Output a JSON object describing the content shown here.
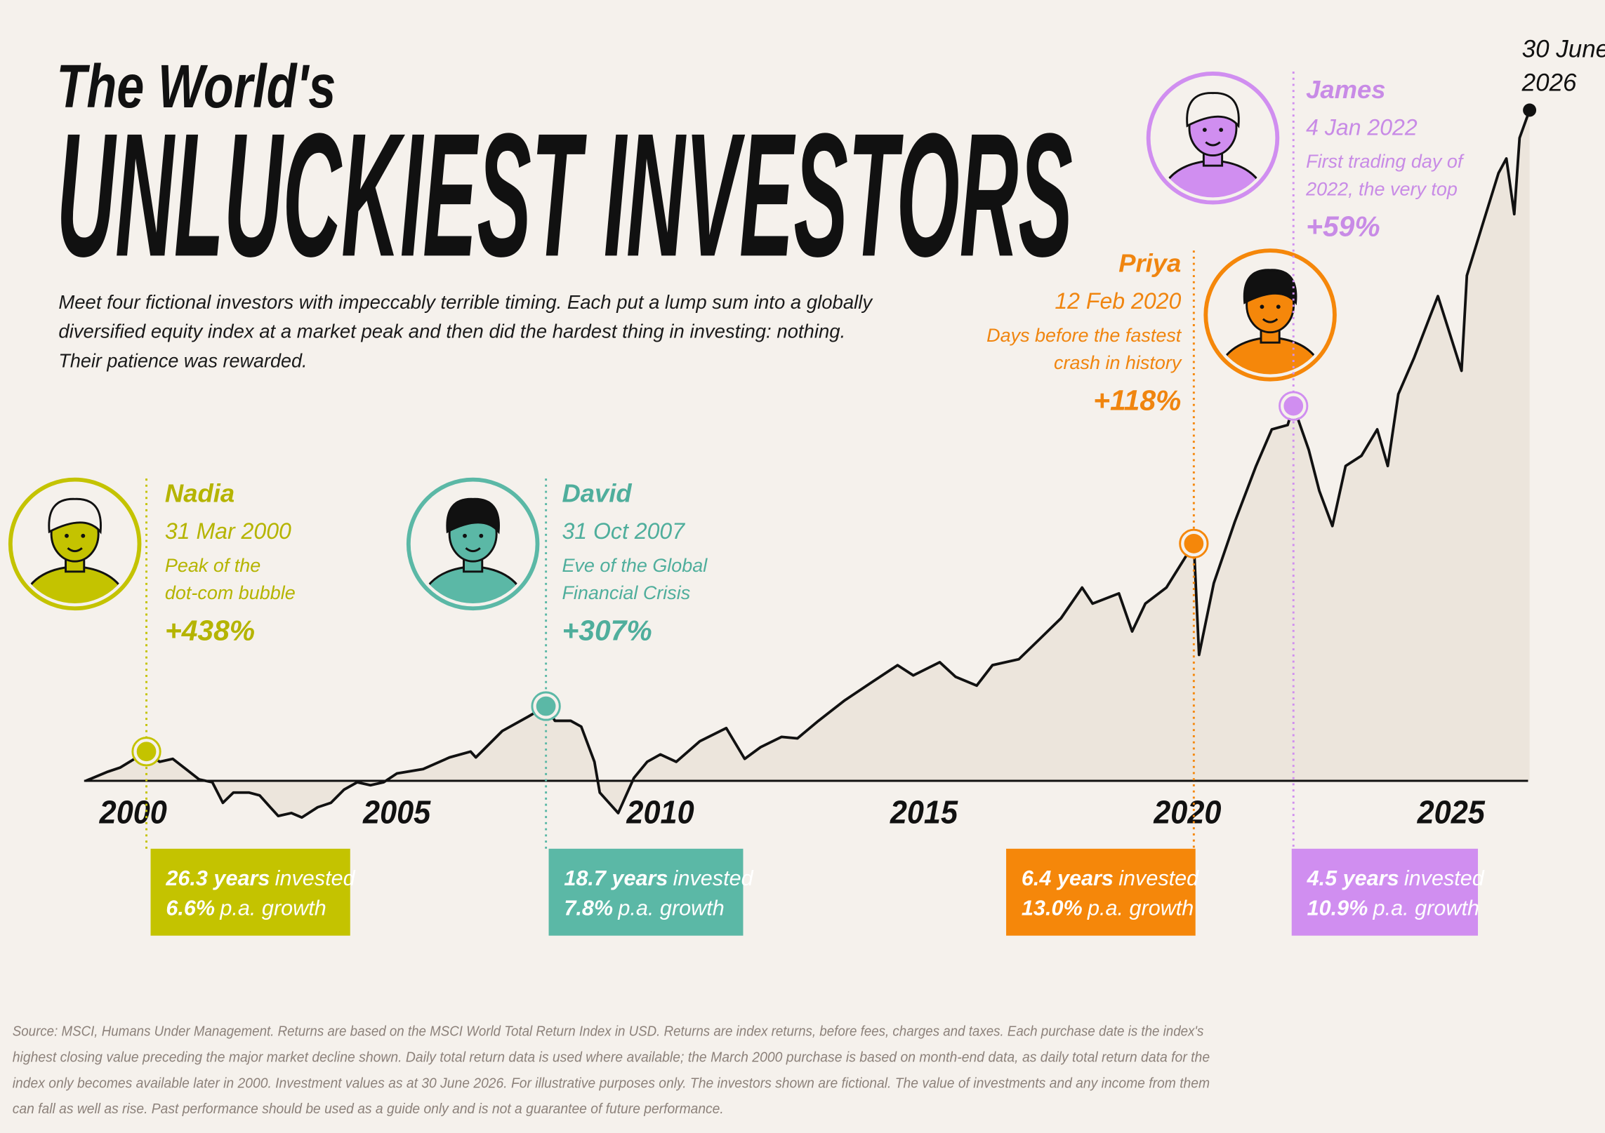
{
  "chart_data": {
    "type": "line",
    "title": "The World's",
    "subtitle": "UNLUCKIEST INVESTORS",
    "intro": [
      "Meet four fictional investors with impeccably terrible timing. Each put a lump sum into a globally",
      "diversified equity index at a market peak and then did the hardest thing in investing: nothing.",
      "Their patience was rewarded."
    ],
    "color": "#111111",
    "area_color": "#ece5dc",
    "x": [
      1999.1,
      1999.5,
      1999.75,
      2000.25,
      2000.5,
      2000.75,
      2001.0,
      2001.25,
      2001.5,
      2001.7,
      2001.9,
      2002.2,
      2002.4,
      2002.6,
      2002.75,
      2003.0,
      2003.2,
      2003.5,
      2003.75,
      2004.0,
      2004.25,
      2004.5,
      2004.75,
      2005.0,
      2005.5,
      2006.0,
      2006.4,
      2006.5,
      2007.0,
      2007.5,
      2007.83,
      2008.0,
      2008.3,
      2008.5,
      2008.75,
      2008.85,
      2009.2,
      2009.5,
      2009.75,
      2010.0,
      2010.3,
      2010.75,
      2011.25,
      2011.6,
      2011.9,
      2012.3,
      2012.6,
      2013.0,
      2013.5,
      2014.0,
      2014.5,
      2014.8,
      2015.3,
      2015.6,
      2016.0,
      2016.3,
      2016.8,
      2017.2,
      2017.6,
      2018.0,
      2018.2,
      2018.7,
      2018.95,
      2019.2,
      2019.6,
      2020.12,
      2020.22,
      2020.5,
      2020.9,
      2021.3,
      2021.6,
      2021.9,
      2022.01,
      2022.3,
      2022.5,
      2022.75,
      2023.0,
      2023.3,
      2023.6,
      2023.8,
      2024.0,
      2024.3,
      2024.6,
      2024.75,
      2025.2,
      2025.3,
      2025.6,
      2025.9,
      2026.05,
      2026.2,
      2026.3,
      2026.49
    ],
    "values": [
      80,
      86,
      89,
      100,
      93,
      95,
      88,
      81,
      79,
      65,
      72,
      72,
      70,
      62,
      56,
      58,
      55,
      62,
      65,
      74,
      79,
      77,
      79,
      85,
      88,
      96,
      100,
      96,
      114,
      124,
      131,
      121,
      121,
      117,
      93,
      72,
      58,
      82,
      93,
      98,
      93,
      107,
      116,
      95,
      103,
      110,
      109,
      121,
      135,
      147,
      159,
      152,
      161,
      151,
      145,
      159,
      163,
      177,
      191,
      212,
      201,
      208,
      182,
      201,
      212,
      242,
      166,
      215,
      257,
      295,
      320,
      323,
      336,
      306,
      278,
      254,
      295,
      302,
      320,
      295,
      344,
      369,
      397,
      411,
      360,
      425,
      460,
      495,
      505,
      467,
      519,
      538
    ],
    "xlim": [
      1999,
      2026.5
    ],
    "ylim": [
      80,
      600
    ],
    "xticks": [
      2000,
      2005,
      2010,
      2015,
      2020,
      2025
    ],
    "grid": false,
    "end_label": [
      "30 June",
      "2026"
    ],
    "investors": [
      {
        "name": "Nadia",
        "date": "31 Mar 2000",
        "description": [
          "Peak of the",
          "dot-com bubble"
        ],
        "return": "+438%",
        "x": 2000.25,
        "value": 100,
        "color": "#c4c300",
        "text_color": "#b5b400",
        "years": "26.3 years",
        "years_text": "invested",
        "growth": "6.6%",
        "growth_text": "p.a. growth"
      },
      {
        "name": "David",
        "date": "31 Oct 2007",
        "description": [
          "Eve of the Global",
          "Financial Crisis"
        ],
        "return": "+307%",
        "x": 2007.83,
        "value": 131,
        "color": "#5bb8a6",
        "text_color": "#4fae9c",
        "years": "18.7 years",
        "years_text": "invested",
        "growth": "7.8%",
        "growth_text": "p.a. growth"
      },
      {
        "name": "Priya",
        "date": "12 Feb 2020",
        "description": [
          "Days before the fastest",
          "crash in history"
        ],
        "return": "+118%",
        "x": 2020.12,
        "value": 242,
        "color": "#f5870a",
        "text_color": "#f0850f",
        "years": "6.4 years",
        "years_text": "invested",
        "growth": "13.0%",
        "growth_text": "p.a. growth"
      },
      {
        "name": "James",
        "date": "4 Jan 2022",
        "description": [
          "First trading day of",
          "2022, the very top"
        ],
        "return": "+59%",
        "x": 2022.01,
        "value": 336,
        "color": "#d08ef0",
        "text_color": "#c88be6",
        "years": "4.5 years",
        "years_text": "invested",
        "growth": "10.9%",
        "growth_text": "p.a. growth"
      }
    ],
    "source": [
      "Source: MSCI, Humans Under Management. Returns are based on the MSCI World Total Return Index in USD. Returns are index returns, before fees, charges and taxes. Each purchase date is the index's",
      "highest closing value preceding the major market decline shown. Daily total return data is used where available; the March 2000 purchase is based on month-end data, as daily total return data for the",
      "index only becomes available later in 2000. Investment values as at 30 June 2026. For illustrative purposes only. The investors shown are fictional. The value of investments and any income from them",
      "can fall as well as rise. Past performance should be used as a guide only and is not a guarantee of future performance."
    ]
  }
}
